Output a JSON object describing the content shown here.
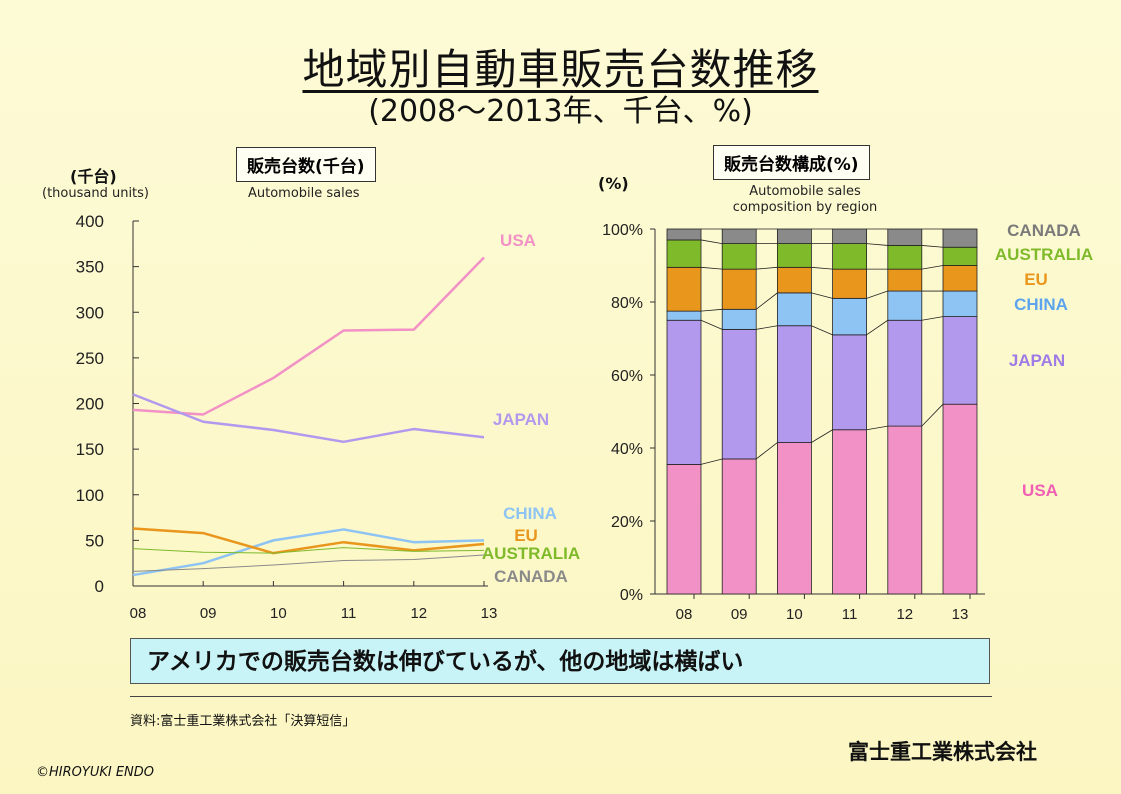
{
  "title": "地域別自動車販売台数推移",
  "subtitle": "(2008～2013年、千台、%)",
  "left_chart": {
    "box_label": "販売台数(千台)",
    "caption": "Automobile sales",
    "unit": "(千台)",
    "unit_en": "(thousand units)"
  },
  "right_chart": {
    "box_label": "販売台数構成(%)",
    "caption_line1": "Automobile sales",
    "caption_line2": "composition by region",
    "unit": "(%)"
  },
  "conclusion": "アメリカでの販売台数は伸びているが、他の地域は横ばい",
  "source": "資料:富士重工業株式会社「決算短信」",
  "company": "富士重工業株式会社",
  "copyright": "©HIROYUKI  ENDO",
  "colors": {
    "USA": "#f291c5",
    "JAPAN": "#b399ee",
    "CHINA": "#8ec4f4",
    "EU": "#e8961c",
    "AUSTRALIA": "#7fba2a",
    "CANADA": "#8a8a8a"
  },
  "chart_data": [
    {
      "type": "line",
      "x": [
        "08",
        "09",
        "10",
        "11",
        "12",
        "13"
      ],
      "ylim": [
        0,
        400
      ],
      "yticks": [
        0,
        50,
        100,
        150,
        200,
        250,
        300,
        350,
        400
      ],
      "series": [
        {
          "name": "USA",
          "values": [
            193,
            188,
            228,
            280,
            281,
            360
          ]
        },
        {
          "name": "JAPAN",
          "values": [
            210,
            180,
            171,
            158,
            172,
            163
          ]
        },
        {
          "name": "CHINA",
          "values": [
            12,
            25,
            50,
            62,
            48,
            50
          ]
        },
        {
          "name": "EU",
          "values": [
            63,
            58,
            36,
            48,
            39,
            46
          ]
        },
        {
          "name": "AUSTRALIA",
          "values": [
            41,
            37,
            36,
            42,
            38,
            39
          ]
        },
        {
          "name": "CANADA",
          "values": [
            16,
            19,
            23,
            28,
            29,
            34
          ]
        }
      ]
    },
    {
      "type": "bar",
      "stacked": true,
      "categories": [
        "08",
        "09",
        "10",
        "11",
        "12",
        "13"
      ],
      "ylim": [
        0,
        100
      ],
      "ytick_labels": [
        "0%",
        "20%",
        "40%",
        "60%",
        "80%",
        "100%"
      ],
      "series": [
        {
          "name": "USA",
          "values": [
            35.5,
            37,
            41.5,
            45,
            46,
            52
          ]
        },
        {
          "name": "JAPAN",
          "values": [
            39.5,
            35.5,
            32,
            26,
            29,
            24
          ]
        },
        {
          "name": "CHINA",
          "values": [
            2.5,
            5.5,
            9,
            10,
            8,
            7
          ]
        },
        {
          "name": "EU",
          "values": [
            12,
            11,
            7,
            8,
            6,
            7
          ]
        },
        {
          "name": "AUSTRALIA",
          "values": [
            7.5,
            7,
            6.5,
            7,
            6.5,
            5
          ]
        },
        {
          "name": "CANADA",
          "values": [
            3,
            4,
            4,
            4,
            4.5,
            5
          ]
        }
      ]
    }
  ]
}
